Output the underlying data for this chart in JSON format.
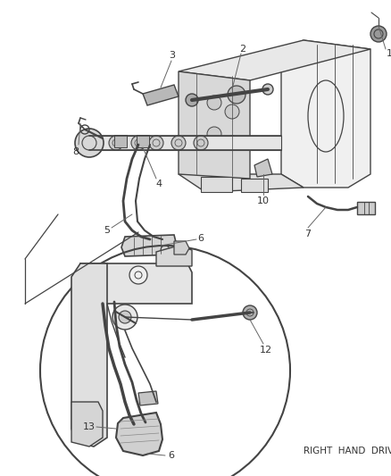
{
  "bg_color": "#ffffff",
  "line_color": "#666666",
  "dark_line": "#444444",
  "thin_line": "#888888",
  "label_color": "#333333",
  "right_hand_text": "RIGHT  HAND  DRIVE",
  "fig_width": 4.38,
  "fig_height": 5.33,
  "dpi": 100
}
